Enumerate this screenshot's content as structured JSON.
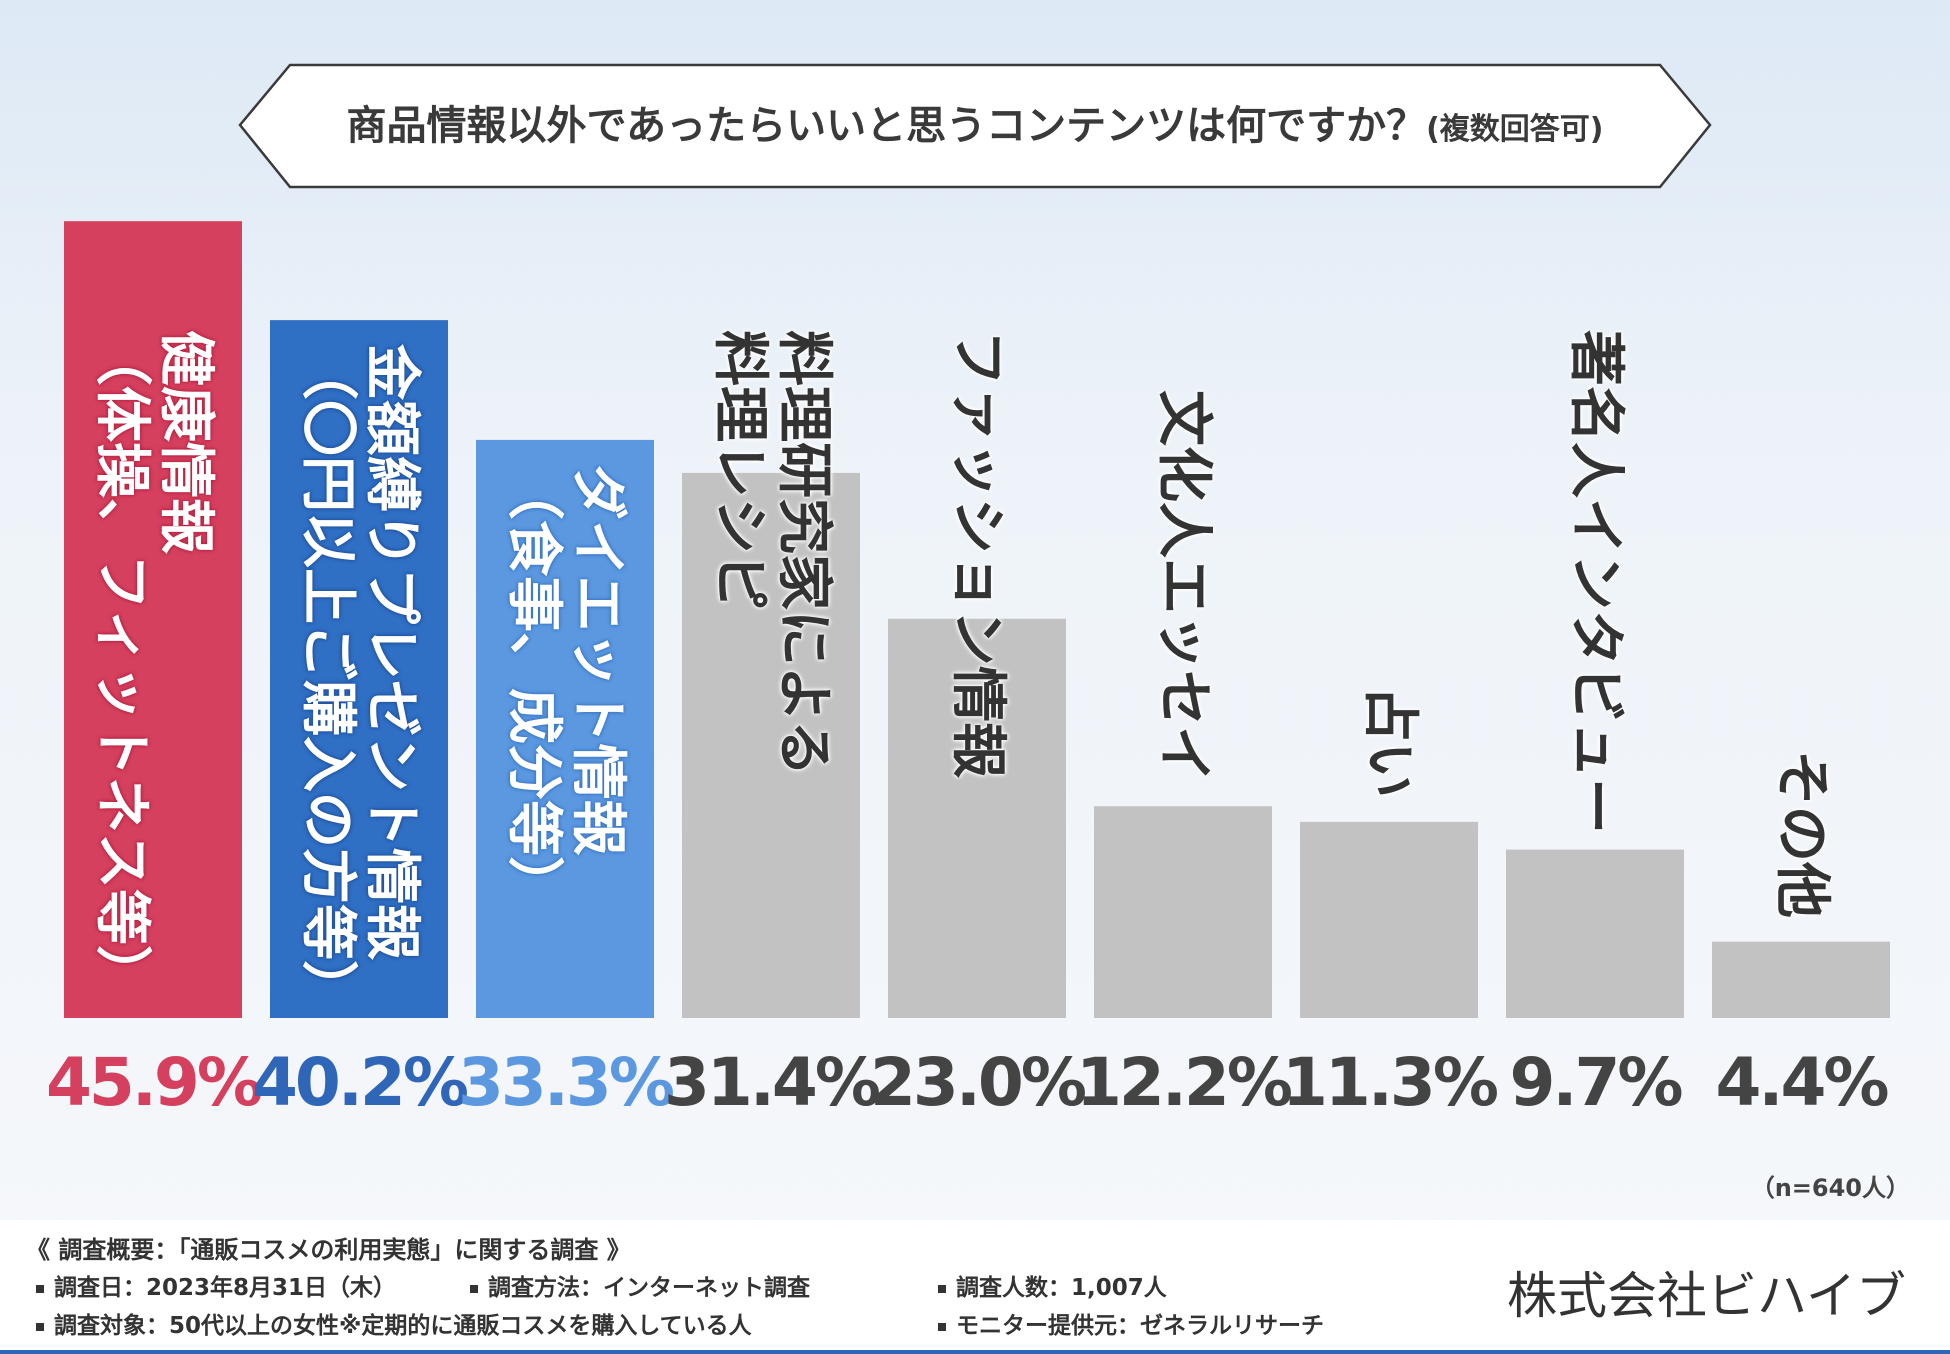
{
  "header": {
    "title": "商品情報以外であったらいいと思うコンテンツは何ですか？",
    "title_sub": "(複数回答可)"
  },
  "chart_data": {
    "type": "bar",
    "title": "商品情報以外であったらいいと思うコンテンツは何ですか？(複数回答可)",
    "categories": [
      "健康情報（体操、フィットネス等）",
      "金額縛りプレゼント情報（〇円以上ご購入の方等）",
      "ダイエット情報（食事、成分等）",
      "料理研究家による料理レシピ",
      "ファッション情報",
      "文化人エッセイ",
      "占い",
      "著名人インタビュー",
      "その他"
    ],
    "label_lines": [
      [
        "健康情報",
        "（体操、フィットネス等）"
      ],
      [
        "金額縛りプレゼント情報",
        "（〇円以上ご購入の方等）"
      ],
      [
        "ダイエット情報",
        "（食事、成分等）"
      ],
      [
        "料理研究家による",
        "料理レシピ"
      ],
      [
        "ファッション情報"
      ],
      [
        "文化人エッセイ"
      ],
      [
        "占い"
      ],
      [
        "著名人インタビュー"
      ],
      [
        "その他"
      ]
    ],
    "values": [
      45.9,
      40.2,
      33.3,
      31.4,
      23.0,
      12.2,
      11.3,
      9.7,
      4.4
    ],
    "value_labels": [
      "45.9%",
      "40.2%",
      "33.3%",
      "31.4%",
      "23.0%",
      "12.2%",
      "11.3%",
      "9.7%",
      "4.4%"
    ],
    "colors": [
      "#d5405f",
      "#2f6fc4",
      "#5b98e0",
      "#c2c2c2",
      "#c2c2c2",
      "#c2c2c2",
      "#c2c2c2",
      "#c2c2c2",
      "#c2c2c2"
    ],
    "value_colors": [
      "#d5405f",
      "#2f66b8",
      "#5b98e0",
      "#444444",
      "#444444",
      "#444444",
      "#444444",
      "#444444",
      "#444444"
    ],
    "ylim": [
      0,
      50
    ],
    "xlabel": "",
    "ylabel": ""
  },
  "sample_note": "（n=640人）",
  "footer": {
    "title": "《 調査概要：「通販コスメの利用実態」に関する調査 》",
    "items": [
      "調査日：2023年8月31日（木）",
      "調査方法：インターネット調査",
      "調査人数：1,007人",
      "調査対象：50代以上の女性※定期的に通販コスメを購入している人",
      "モニター提供元：ゼネラルリサーチ"
    ],
    "company": "株式会社ビハイブ"
  }
}
